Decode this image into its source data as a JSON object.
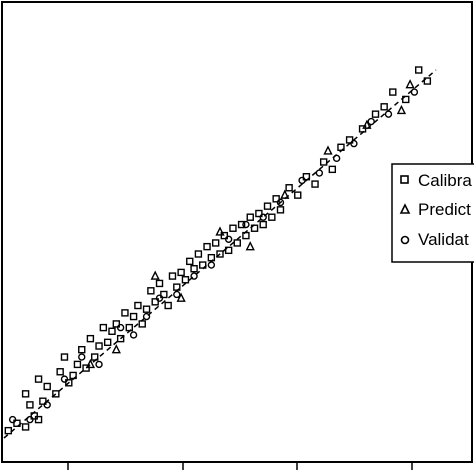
{
  "chart_data": {
    "type": "scatter",
    "title": "",
    "xlabel": "",
    "ylabel": "",
    "xlim": [
      0,
      1
    ],
    "ylim": [
      0,
      1
    ],
    "grid": false,
    "legend_position": "right",
    "reference_line": {
      "style": "dashed",
      "from": [
        0,
        0
      ],
      "to": [
        1,
        1
      ]
    },
    "legend": [
      "Calibra",
      "Predict",
      "Validat"
    ],
    "series": [
      {
        "name": "Calibra",
        "marker": "square",
        "points": [
          [
            0.01,
            0.02
          ],
          [
            0.03,
            0.04
          ],
          [
            0.05,
            0.03
          ],
          [
            0.07,
            0.06
          ],
          [
            0.06,
            0.09
          ],
          [
            0.08,
            0.05
          ],
          [
            0.05,
            0.12
          ],
          [
            0.09,
            0.1
          ],
          [
            0.1,
            0.14
          ],
          [
            0.08,
            0.16
          ],
          [
            0.12,
            0.12
          ],
          [
            0.13,
            0.18
          ],
          [
            0.15,
            0.15
          ],
          [
            0.14,
            0.22
          ],
          [
            0.17,
            0.2
          ],
          [
            0.16,
            0.17
          ],
          [
            0.18,
            0.24
          ],
          [
            0.19,
            0.19
          ],
          [
            0.2,
            0.27
          ],
          [
            0.21,
            0.22
          ],
          [
            0.22,
            0.25
          ],
          [
            0.23,
            0.3
          ],
          [
            0.24,
            0.26
          ],
          [
            0.25,
            0.29
          ],
          [
            0.26,
            0.31
          ],
          [
            0.27,
            0.27
          ],
          [
            0.28,
            0.34
          ],
          [
            0.29,
            0.3
          ],
          [
            0.3,
            0.33
          ],
          [
            0.31,
            0.36
          ],
          [
            0.32,
            0.31
          ],
          [
            0.33,
            0.35
          ],
          [
            0.34,
            0.4
          ],
          [
            0.35,
            0.37
          ],
          [
            0.36,
            0.42
          ],
          [
            0.37,
            0.39
          ],
          [
            0.38,
            0.36
          ],
          [
            0.39,
            0.44
          ],
          [
            0.4,
            0.41
          ],
          [
            0.41,
            0.45
          ],
          [
            0.42,
            0.43
          ],
          [
            0.43,
            0.48
          ],
          [
            0.44,
            0.46
          ],
          [
            0.45,
            0.5
          ],
          [
            0.46,
            0.47
          ],
          [
            0.47,
            0.52
          ],
          [
            0.48,
            0.49
          ],
          [
            0.49,
            0.53
          ],
          [
            0.5,
            0.5
          ],
          [
            0.51,
            0.55
          ],
          [
            0.52,
            0.51
          ],
          [
            0.53,
            0.57
          ],
          [
            0.54,
            0.53
          ],
          [
            0.55,
            0.58
          ],
          [
            0.56,
            0.55
          ],
          [
            0.57,
            0.6
          ],
          [
            0.58,
            0.57
          ],
          [
            0.59,
            0.61
          ],
          [
            0.6,
            0.58
          ],
          [
            0.61,
            0.63
          ],
          [
            0.62,
            0.6
          ],
          [
            0.63,
            0.65
          ],
          [
            0.64,
            0.62
          ],
          [
            0.66,
            0.68
          ],
          [
            0.68,
            0.66
          ],
          [
            0.7,
            0.71
          ],
          [
            0.72,
            0.69
          ],
          [
            0.74,
            0.75
          ],
          [
            0.76,
            0.73
          ],
          [
            0.78,
            0.79
          ],
          [
            0.8,
            0.81
          ],
          [
            0.83,
            0.84
          ],
          [
            0.86,
            0.88
          ],
          [
            0.88,
            0.9
          ],
          [
            0.9,
            0.94
          ],
          [
            0.93,
            0.92
          ],
          [
            0.96,
            1.0
          ],
          [
            0.98,
            0.97
          ]
        ]
      },
      {
        "name": "Predict",
        "marker": "triangle",
        "points": [
          [
            0.2,
            0.2
          ],
          [
            0.26,
            0.24
          ],
          [
            0.35,
            0.44
          ],
          [
            0.41,
            0.38
          ],
          [
            0.5,
            0.56
          ],
          [
            0.57,
            0.52
          ],
          [
            0.65,
            0.66
          ],
          [
            0.75,
            0.78
          ],
          [
            0.84,
            0.85
          ],
          [
            0.92,
            0.89
          ],
          [
            0.94,
            0.96
          ]
        ]
      },
      {
        "name": "Validat",
        "marker": "circle",
        "points": [
          [
            0.02,
            0.05
          ],
          [
            0.06,
            0.05
          ],
          [
            0.1,
            0.09
          ],
          [
            0.14,
            0.16
          ],
          [
            0.18,
            0.22
          ],
          [
            0.22,
            0.2
          ],
          [
            0.27,
            0.3
          ],
          [
            0.3,
            0.28
          ],
          [
            0.33,
            0.33
          ],
          [
            0.36,
            0.38
          ],
          [
            0.4,
            0.39
          ],
          [
            0.44,
            0.44
          ],
          [
            0.48,
            0.47
          ],
          [
            0.52,
            0.54
          ],
          [
            0.56,
            0.58
          ],
          [
            0.6,
            0.6
          ],
          [
            0.64,
            0.64
          ],
          [
            0.69,
            0.7
          ],
          [
            0.73,
            0.72
          ],
          [
            0.77,
            0.76
          ],
          [
            0.81,
            0.8
          ],
          [
            0.85,
            0.86
          ],
          [
            0.89,
            0.88
          ],
          [
            0.95,
            0.94
          ]
        ]
      }
    ]
  }
}
